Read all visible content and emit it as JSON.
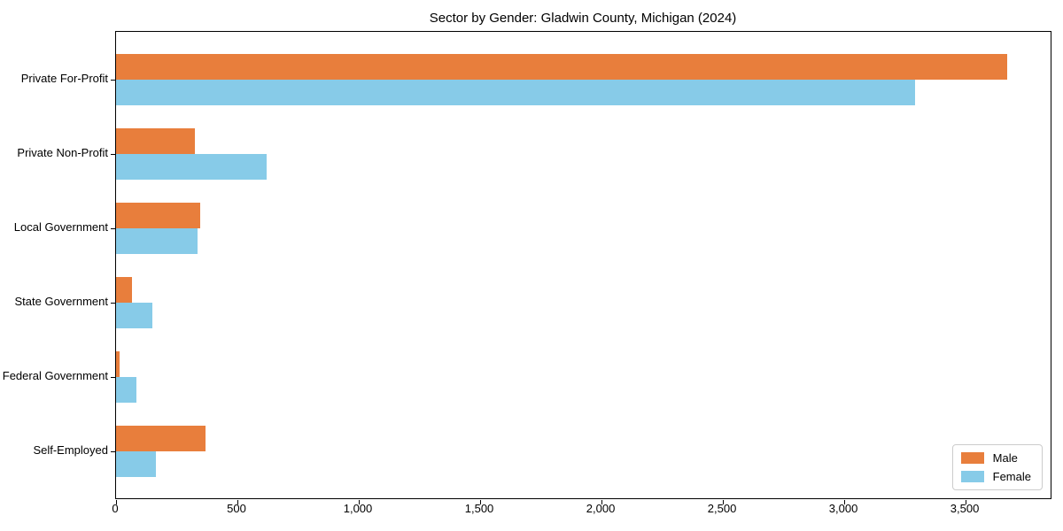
{
  "title": "Sector by Gender: Gladwin County, Michigan (2024)",
  "chart_data": {
    "type": "bar",
    "orientation": "horizontal",
    "title": "Sector by Gender: Gladwin County, Michigan (2024)",
    "categories": [
      "Private For-Profit",
      "Private Non-Profit",
      "Local Government",
      "State Government",
      "Federal Government",
      "Self-Employed"
    ],
    "series": [
      {
        "name": "Male",
        "color": "#e87e3c",
        "values": [
          3670,
          325,
          345,
          65,
          15,
          370
        ]
      },
      {
        "name": "Female",
        "color": "#87cbe8",
        "values": [
          3290,
          620,
          335,
          150,
          85,
          165
        ]
      }
    ],
    "xlim": [
      0,
      3850
    ],
    "xticks": [
      {
        "value": 0,
        "label": "0"
      },
      {
        "value": 500,
        "label": "500"
      },
      {
        "value": 1000,
        "label": "1,000"
      },
      {
        "value": 1500,
        "label": "1,500"
      },
      {
        "value": 2000,
        "label": "2,000"
      },
      {
        "value": 2500,
        "label": "2,500"
      },
      {
        "value": 3000,
        "label": "3,000"
      },
      {
        "value": 3500,
        "label": "3,500"
      }
    ],
    "grid": false,
    "legend_position": "lower right",
    "background": "#ffffff",
    "spine_color": "#000000"
  }
}
